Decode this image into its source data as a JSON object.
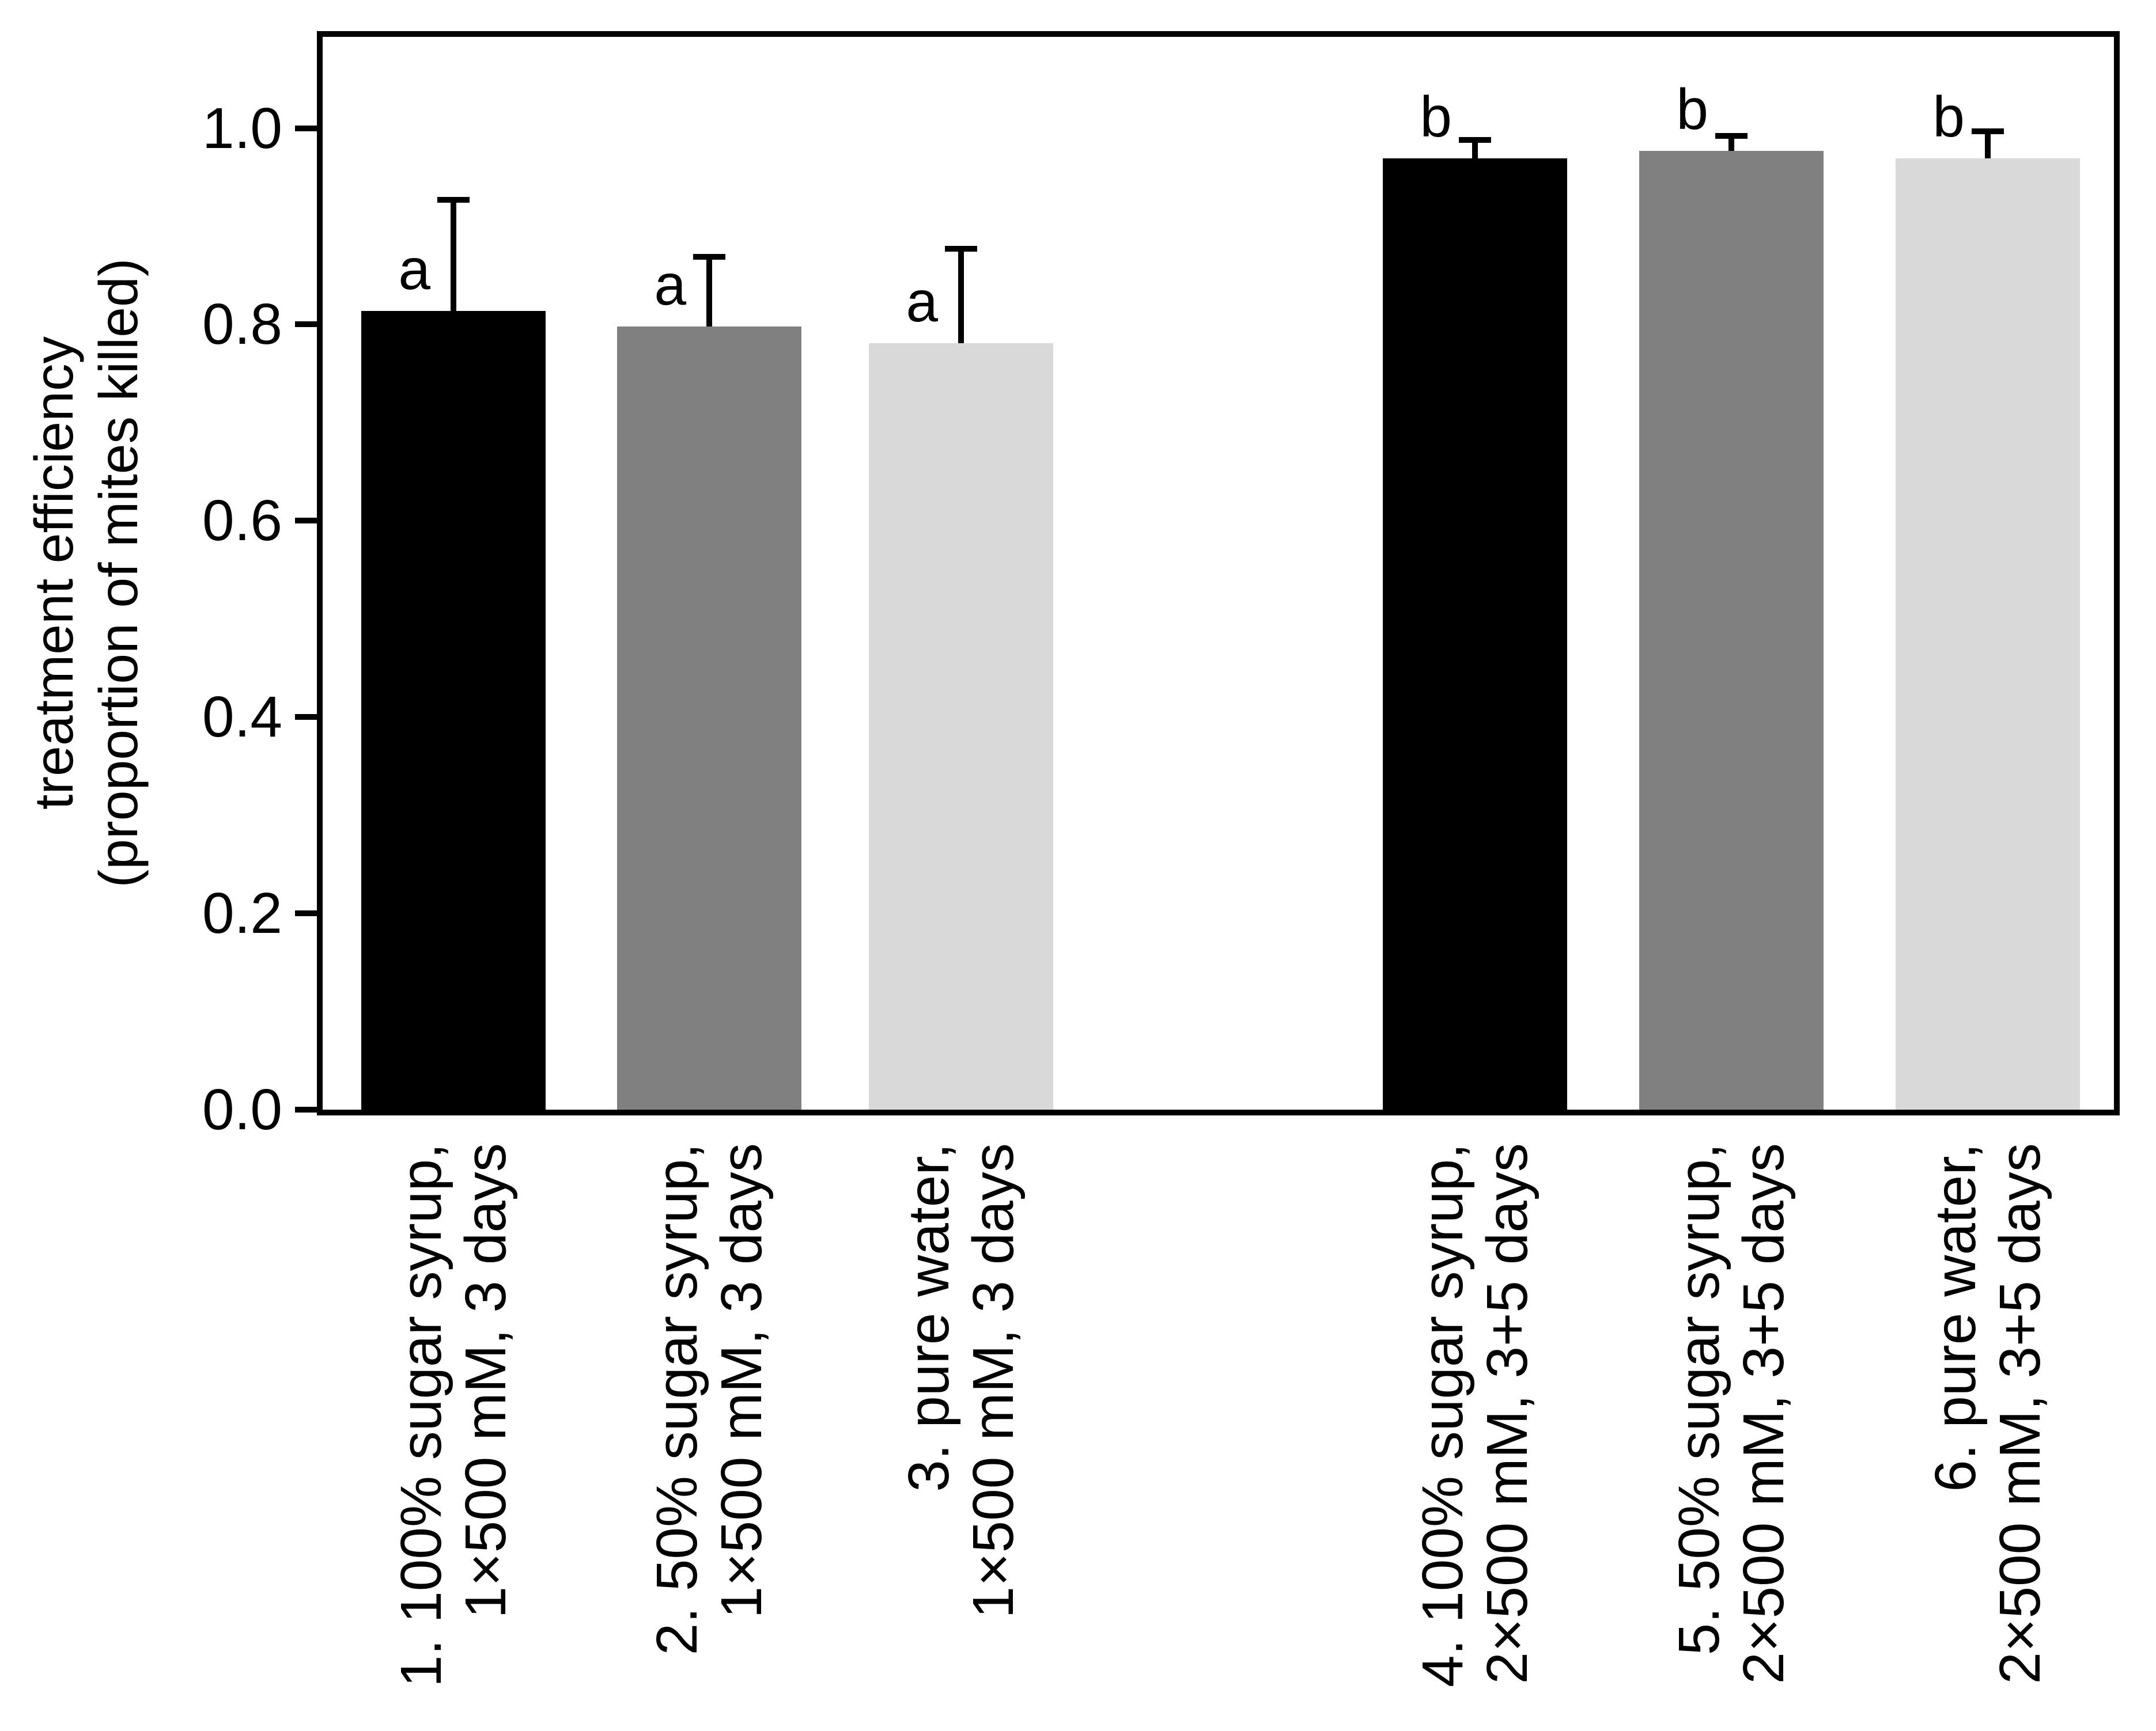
{
  "figure": {
    "background": "#ffffff",
    "frame_color": "#000000",
    "error_bar_color": "#000000"
  },
  "chart_data": {
    "type": "bar",
    "title": "",
    "xlabel": "",
    "ylabel_line1": "treatment efficiency",
    "ylabel_line2": "(proportion of mites killed)",
    "ylim": [
      0,
      1.093
    ],
    "grid": false,
    "legend": "none",
    "yticks": [
      {
        "label": "0.0",
        "value": 0.0
      },
      {
        "label": "0.2",
        "value": 0.2
      },
      {
        "label": "0.4",
        "value": 0.4
      },
      {
        "label": "0.6",
        "value": 0.6
      },
      {
        "label": "0.8",
        "value": 0.8
      },
      {
        "label": "1.0",
        "value": 1.0
      }
    ],
    "bars": [
      {
        "label_line1": "1. 100% sugar syrup,",
        "label_line2": "1×500 mM, 3 days",
        "value": 0.814,
        "error_up": 0.116,
        "sig_letter": "a",
        "color": "#000000"
      },
      {
        "label_line1": "2. 50% sugar syrup,",
        "label_line2": "1×500 mM, 3 days",
        "value": 0.798,
        "error_up": 0.074,
        "sig_letter": "a",
        "color": "#808080"
      },
      {
        "label_line1": "3. pure water,",
        "label_line2": "1×500 mM, 3 days",
        "value": 0.781,
        "error_up": 0.099,
        "sig_letter": "a",
        "color": "#d9d9d9"
      },
      {
        "label_line1": "4. 100% sugar syrup,",
        "label_line2": "2×500 mM, 3+5 days",
        "value": 0.969,
        "error_up": 0.022,
        "sig_letter": "b",
        "color": "#000000"
      },
      {
        "label_line1": "5. 50% sugar syrup,",
        "label_line2": "2×500 mM, 3+5 days",
        "value": 0.977,
        "error_up": 0.018,
        "sig_letter": "b",
        "color": "#808080"
      },
      {
        "label_line1": "6. pure water,",
        "label_line2": "2×500 mM, 3+5 days",
        "value": 0.969,
        "error_up": 0.031,
        "sig_letter": "b",
        "color": "#d9d9d9"
      }
    ]
  }
}
